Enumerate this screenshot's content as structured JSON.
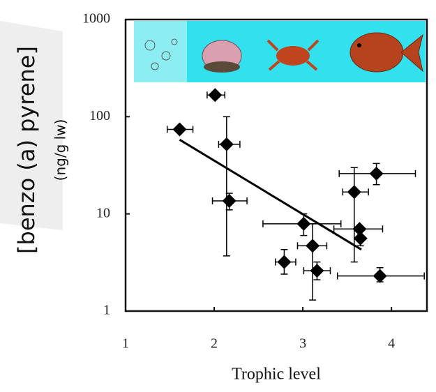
{
  "chart_data": {
    "type": "scatter",
    "ylabel": "[benzo (a) pyrene]",
    "ylabel_unit": "(ng/g lw)",
    "xlabel": "Trophic level",
    "x": [
      1.61,
      2.01,
      2.14,
      2.17,
      3.01,
      3.11,
      2.79,
      3.16,
      3.58,
      3.83,
      3.64,
      3.65,
      3.87
    ],
    "values": [
      74,
      167,
      52,
      13.6,
      7.9,
      4.7,
      3.2,
      2.6,
      16.8,
      26,
      7.0,
      5.6,
      2.3
    ],
    "x_low": [
      1.47,
      1.92,
      2.05,
      1.98,
      2.55,
      2.94,
      2.69,
      3.01,
      3.45,
      3.41,
      3.35,
      null,
      3.39
    ],
    "x_high": [
      1.76,
      2.12,
      2.29,
      2.37,
      3.43,
      3.27,
      2.92,
      3.31,
      3.74,
      4.27,
      3.9,
      null,
      4.37
    ],
    "y_low": [
      null,
      null,
      3.7,
      11,
      6,
      1.3,
      2.4,
      2.1,
      3.2,
      20,
      null,
      4.7,
      2.0
    ],
    "y_high": [
      null,
      null,
      100,
      16.3,
      10,
      7.9,
      4.3,
      3.2,
      30,
      33,
      null,
      6.6,
      2.8
    ],
    "fit": {
      "x": [
        1.61,
        3.66
      ],
      "values": [
        58,
        4.3
      ]
    },
    "color": "#000000",
    "xlim": [
      1,
      4.4
    ],
    "ylim": [
      1,
      1000
    ],
    "log_y": true,
    "xticks": [
      1,
      2,
      3,
      4
    ],
    "yticks": [
      1,
      10,
      100,
      1000
    ]
  }
}
